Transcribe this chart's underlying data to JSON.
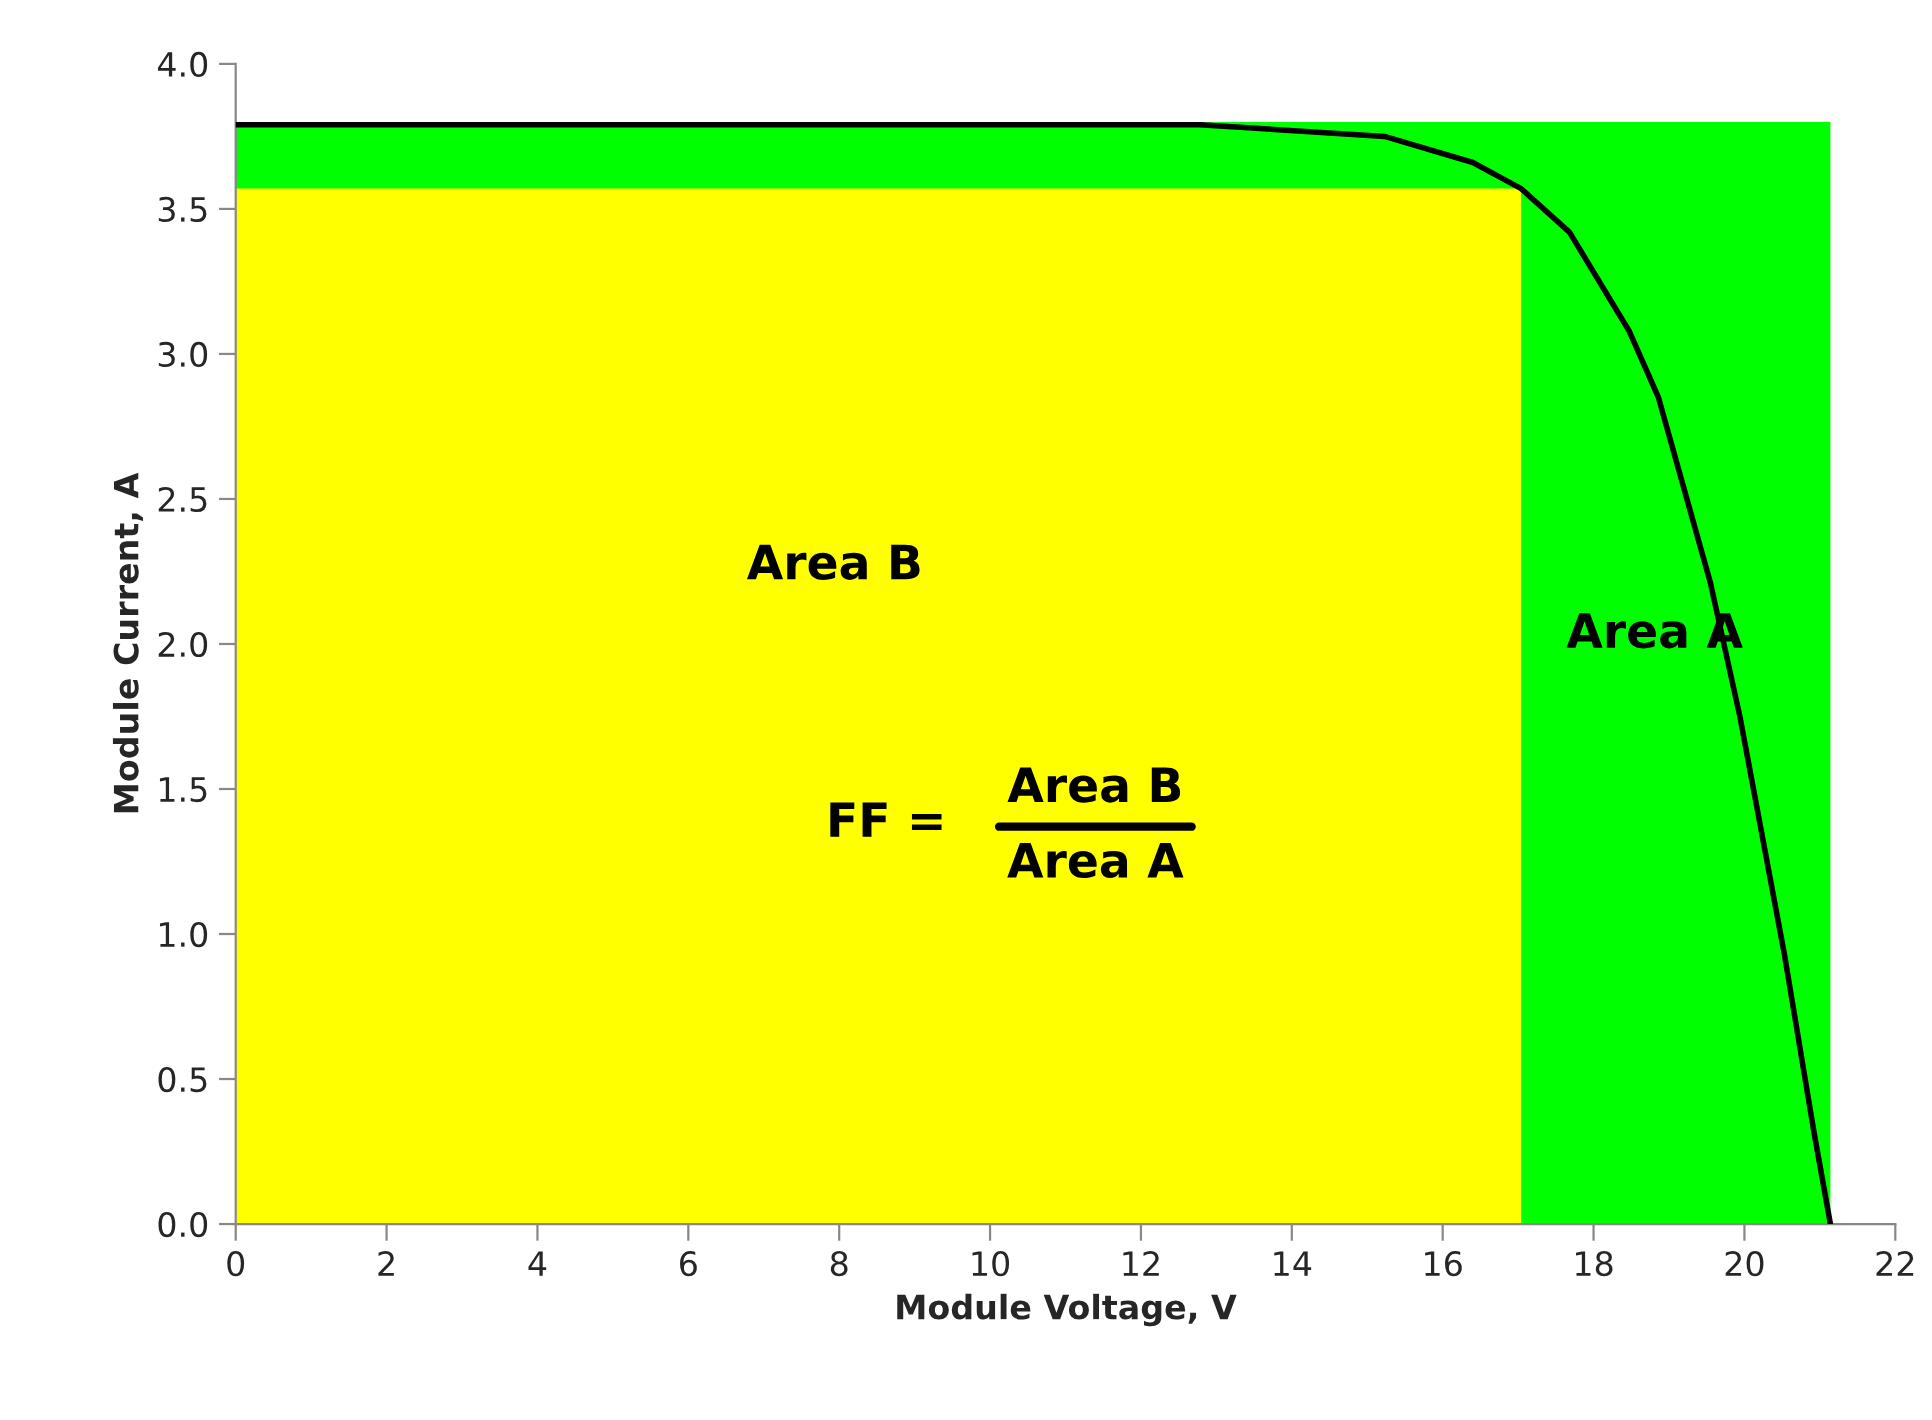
{
  "chart_data": {
    "type": "line",
    "xlabel": "Module Voltage, V",
    "ylabel": "Module Current, A",
    "series": [
      {
        "type": "area",
        "color": "#00ff00",
        "x": [
          0,
          21.14
        ],
        "values": [
          3.8,
          3.8
        ]
      },
      {
        "type": "area",
        "color": "#ffff00",
        "x": [
          0,
          17.04
        ],
        "values": [
          3.57,
          3.57
        ]
      },
      {
        "color": "#000000",
        "x": [
          0,
          4,
          8,
          12.78,
          15.23,
          16.4,
          17.04,
          17.68,
          18.47,
          18.86,
          19.55,
          19.94,
          20.53,
          20.92,
          21.14
        ],
        "values": [
          3.79,
          3.79,
          3.79,
          3.79,
          3.75,
          3.66,
          3.57,
          3.42,
          3.08,
          2.85,
          2.21,
          1.75,
          0.93,
          0.32,
          0
        ]
      }
    ],
    "annotations": [
      "Area B",
      "Area A",
      "FF =",
      "Area B",
      "Area A"
    ],
    "xlim": [
      0,
      22
    ],
    "xticks": [
      0,
      2,
      4,
      6,
      8,
      10,
      12,
      14,
      16,
      18,
      20,
      22
    ],
    "ylim": [
      0,
      4.0
    ],
    "yticks": [
      {
        "value": 0,
        "label": "0.0"
      },
      {
        "value": 0.5,
        "label": "0.5"
      },
      {
        "value": 1.0,
        "label": "1.0"
      },
      {
        "value": 1.5,
        "label": "1.5"
      },
      {
        "value": 2.0,
        "label": "2.0"
      },
      {
        "value": 2.5,
        "label": "2.5"
      },
      {
        "value": 3.0,
        "label": "3.0"
      },
      {
        "value": 3.5,
        "label": "3.5"
      },
      {
        "value": 4.0,
        "label": "4.0"
      }
    ],
    "grid": false,
    "legend": false,
    "line_style": "solid",
    "marker": "none"
  }
}
